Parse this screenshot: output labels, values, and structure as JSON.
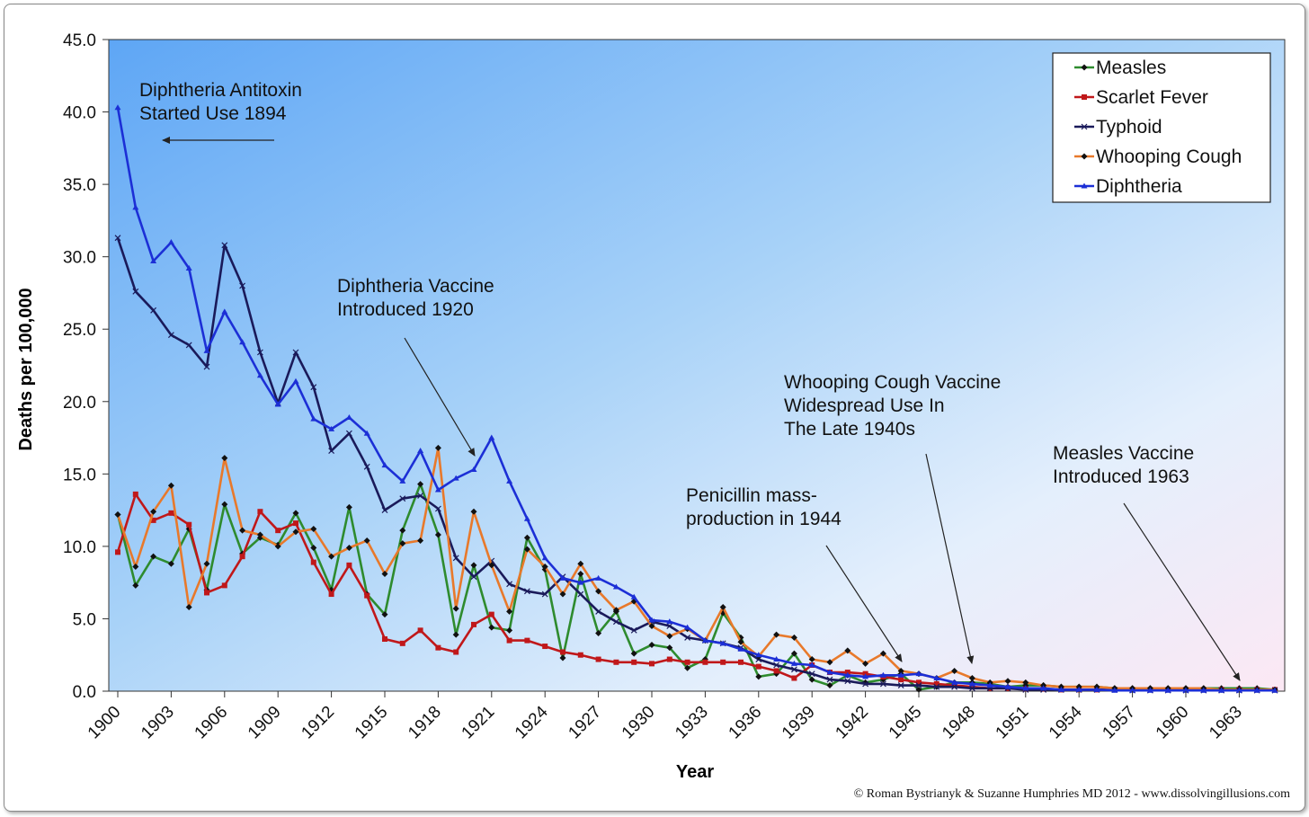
{
  "chart_data": {
    "type": "line",
    "xlabel": "Year",
    "ylabel": "Deaths per 100,000",
    "ylim": [
      0,
      45
    ],
    "ytick_labels": [
      "0.0",
      "5.0",
      "10.0",
      "15.0",
      "20.0",
      "25.0",
      "30.0",
      "35.0",
      "40.0",
      "45.0"
    ],
    "xlim": [
      1900,
      1965
    ],
    "xtick_labels": [
      "1900",
      "1903",
      "1906",
      "1909",
      "1912",
      "1915",
      "1918",
      "1921",
      "1924",
      "1927",
      "1930",
      "1933",
      "1936",
      "1939",
      "1942",
      "1945",
      "1948",
      "1951",
      "1954",
      "1957",
      "1960",
      "1963"
    ],
    "grid": false,
    "legend_position": "top-right",
    "x": [
      1900,
      1901,
      1902,
      1903,
      1904,
      1905,
      1906,
      1907,
      1908,
      1909,
      1910,
      1911,
      1912,
      1913,
      1914,
      1915,
      1916,
      1917,
      1918,
      1919,
      1920,
      1921,
      1922,
      1923,
      1924,
      1925,
      1926,
      1927,
      1928,
      1929,
      1930,
      1931,
      1932,
      1933,
      1934,
      1935,
      1936,
      1937,
      1938,
      1939,
      1940,
      1941,
      1942,
      1943,
      1944,
      1945,
      1946,
      1947,
      1948,
      1949,
      1950,
      1951,
      1952,
      1953,
      1954,
      1955,
      1956,
      1957,
      1958,
      1959,
      1960,
      1961,
      1962,
      1963,
      1964,
      1965
    ],
    "series": [
      {
        "name": "Measles",
        "color": "#2e8b2e",
        "marker": "diamond",
        "values": [
          12.2,
          7.3,
          9.3,
          8.8,
          11.2,
          7.0,
          12.9,
          9.5,
          10.6,
          10.1,
          12.3,
          9.9,
          7.0,
          12.7,
          6.7,
          5.3,
          11.1,
          14.3,
          10.8,
          3.9,
          8.7,
          4.4,
          4.2,
          10.6,
          8.4,
          2.3,
          8.1,
          4.0,
          5.5,
          2.6,
          3.2,
          3.0,
          1.6,
          2.2,
          5.4,
          3.7,
          1.0,
          1.2,
          2.6,
          0.8,
          0.4,
          1.1,
          0.6,
          0.8,
          1.2,
          0.1,
          0.3,
          0.6,
          0.6,
          0.5,
          0.3,
          0.4,
          0.4,
          0.3,
          0.3,
          0.3,
          0.2,
          0.2,
          0.2,
          0.2,
          0.2,
          0.2,
          0.2,
          0.2,
          0.2,
          0.1
        ]
      },
      {
        "name": "Scarlet Fever",
        "color": "#c0181a",
        "marker": "square",
        "values": [
          9.6,
          13.6,
          11.8,
          12.3,
          11.5,
          6.8,
          7.3,
          9.3,
          12.4,
          11.1,
          11.6,
          8.9,
          6.7,
          8.7,
          6.6,
          3.6,
          3.3,
          4.2,
          3.0,
          2.7,
          4.6,
          5.3,
          3.5,
          3.5,
          3.1,
          2.7,
          2.5,
          2.2,
          2.0,
          2.0,
          1.9,
          2.2,
          2.0,
          2.0,
          2.0,
          2.0,
          1.7,
          1.4,
          0.9,
          1.8,
          1.3,
          1.3,
          1.2,
          1.0,
          0.8,
          0.6,
          0.5,
          0.4,
          0.3,
          0.2,
          0.2,
          0.15,
          0.15,
          0.1,
          0.1,
          0.1,
          0.1,
          0.1,
          0.1,
          0.1,
          0.1,
          0.1,
          0.1,
          0.1,
          0.1,
          0.1
        ]
      },
      {
        "name": "Typhoid",
        "color": "#1a1a5a",
        "marker": "x",
        "values": [
          31.3,
          27.6,
          26.3,
          24.6,
          23.9,
          22.4,
          30.8,
          28.0,
          23.4,
          19.9,
          23.4,
          21.0,
          16.6,
          17.8,
          15.5,
          12.5,
          13.3,
          13.5,
          12.6,
          9.2,
          7.9,
          9.0,
          7.4,
          6.9,
          6.7,
          7.9,
          6.7,
          5.5,
          4.8,
          4.2,
          4.8,
          4.5,
          3.7,
          3.5,
          3.3,
          3.0,
          2.2,
          1.8,
          1.5,
          1.2,
          0.8,
          0.7,
          0.5,
          0.5,
          0.4,
          0.4,
          0.3,
          0.3,
          0.2,
          0.2,
          0.2,
          0.1,
          0.1,
          0.1,
          0.1,
          0.1,
          0.1,
          0.05,
          0.05,
          0.05,
          0.05,
          0.05,
          0.05,
          0.05,
          0.05,
          0.05
        ]
      },
      {
        "name": "Whooping Cough",
        "color": "#e8792b",
        "marker": "diamond",
        "values": [
          12.2,
          8.6,
          12.4,
          14.2,
          5.8,
          8.8,
          16.1,
          11.1,
          10.8,
          10.0,
          11.0,
          11.2,
          9.3,
          9.9,
          10.4,
          8.1,
          10.2,
          10.4,
          16.8,
          5.7,
          12.4,
          8.7,
          5.5,
          9.8,
          8.6,
          6.7,
          8.8,
          6.9,
          5.6,
          6.2,
          4.5,
          3.8,
          4.3,
          3.5,
          5.8,
          3.4,
          2.4,
          3.9,
          3.7,
          2.2,
          2.0,
          2.8,
          1.9,
          2.6,
          1.4,
          1.2,
          0.9,
          1.4,
          0.9,
          0.6,
          0.7,
          0.6,
          0.4,
          0.3,
          0.3,
          0.3,
          0.2,
          0.2,
          0.2,
          0.2,
          0.2,
          0.2,
          0.1,
          0.1,
          0.1,
          0.1
        ]
      },
      {
        "name": "Diphtheria",
        "color": "#1c2fd6",
        "marker": "triangle",
        "values": [
          40.3,
          33.4,
          29.7,
          31.0,
          29.2,
          23.5,
          26.2,
          24.1,
          21.8,
          19.8,
          21.4,
          18.8,
          18.1,
          18.9,
          17.8,
          15.6,
          14.5,
          16.6,
          13.9,
          14.7,
          15.3,
          17.5,
          14.5,
          11.9,
          9.2,
          7.8,
          7.5,
          7.8,
          7.2,
          6.5,
          4.9,
          4.8,
          4.4,
          3.5,
          3.3,
          2.9,
          2.5,
          2.2,
          1.9,
          1.8,
          1.3,
          1.1,
          1.0,
          1.1,
          1.1,
          1.2,
          0.9,
          0.6,
          0.5,
          0.4,
          0.3,
          0.2,
          0.2,
          0.1,
          0.1,
          0.1,
          0.05,
          0.05,
          0.05,
          0.05,
          0.05,
          0.05,
          0.05,
          0.05,
          0.05,
          0.05
        ]
      }
    ],
    "annotations": [
      {
        "id": "antitoxin",
        "lines": [
          "Diphtheria Antitoxin",
          "Started Use 1894"
        ]
      },
      {
        "id": "diph-vaccine",
        "lines": [
          "Diphtheria Vaccine",
          "Introduced 1920"
        ]
      },
      {
        "id": "penicillin",
        "lines": [
          "Penicillin mass-",
          "production in 1944"
        ]
      },
      {
        "id": "whooping-vaccine",
        "lines": [
          "Whooping Cough Vaccine",
          "Widespread Use In",
          "The Late 1940s"
        ]
      },
      {
        "id": "measles-vaccine",
        "lines": [
          "Measles Vaccine",
          "Introduced 1963"
        ]
      }
    ]
  },
  "credit": "© Roman Bystrianyk & Suzanne Humphries MD 2012 - www.dissolvingillusions.com"
}
